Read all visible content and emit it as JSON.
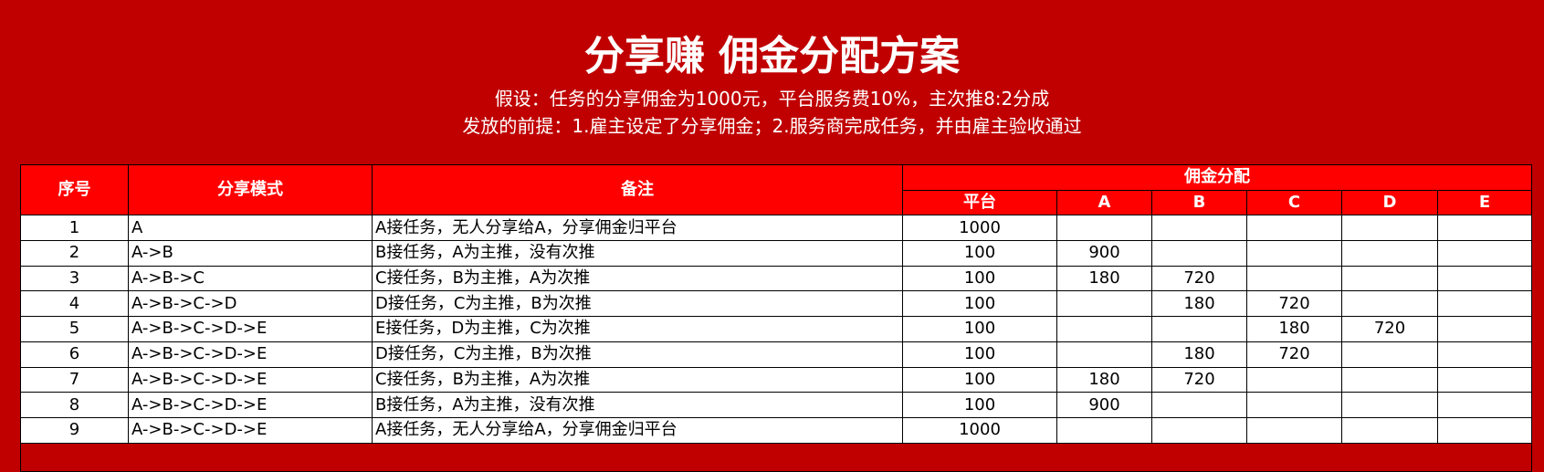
{
  "title": "分享赚 佣金分配方案",
  "assumption": "假设：任务的分享佣金为1000元，平台服务费10%，主次推8:2分成",
  "premise": "发放的前提：1.雇主设定了分享佣金；2.服务商完成任务，并由雇主验收通过",
  "colors": {
    "background": "#c00000",
    "header": "#ff0000"
  },
  "table": {
    "headers": {
      "index": "序号",
      "mode": "分享模式",
      "note": "备注",
      "commission": "佣金分配",
      "sub": [
        "平台",
        "A",
        "B",
        "C",
        "D",
        "E"
      ]
    },
    "rows": [
      {
        "index": "1",
        "mode": "A",
        "note": "A接任务，无人分享给A，分享佣金归平台",
        "values": [
          "1000",
          "",
          "",
          "",
          "",
          ""
        ]
      },
      {
        "index": "2",
        "mode": "A->B",
        "note": "B接任务，A为主推，没有次推",
        "values": [
          "100",
          "900",
          "",
          "",
          "",
          ""
        ]
      },
      {
        "index": "3",
        "mode": "A->B->C",
        "note": "C接任务，B为主推，A为次推",
        "values": [
          "100",
          "180",
          "720",
          "",
          "",
          ""
        ]
      },
      {
        "index": "4",
        "mode": "A->B->C->D",
        "note": "D接任务，C为主推，B为次推",
        "values": [
          "100",
          "",
          "180",
          "720",
          "",
          ""
        ]
      },
      {
        "index": "5",
        "mode": "A->B->C->D->E",
        "note": "E接任务，D为主推，C为次推",
        "values": [
          "100",
          "",
          "",
          "180",
          "720",
          ""
        ]
      },
      {
        "index": "6",
        "mode": "A->B->C->D->E",
        "note": "D接任务，C为主推，B为次推",
        "values": [
          "100",
          "",
          "180",
          "720",
          "",
          ""
        ]
      },
      {
        "index": "7",
        "mode": "A->B->C->D->E",
        "note": "C接任务，B为主推，A为次推",
        "values": [
          "100",
          "180",
          "720",
          "",
          "",
          ""
        ]
      },
      {
        "index": "8",
        "mode": "A->B->C->D->E",
        "note": "B接任务，A为主推，没有次推",
        "values": [
          "100",
          "900",
          "",
          "",
          "",
          ""
        ]
      },
      {
        "index": "9",
        "mode": "A->B->C->D->E",
        "note": "A接任务，无人分享给A，分享佣金归平台",
        "values": [
          "1000",
          "",
          "",
          "",
          "",
          ""
        ]
      }
    ]
  }
}
